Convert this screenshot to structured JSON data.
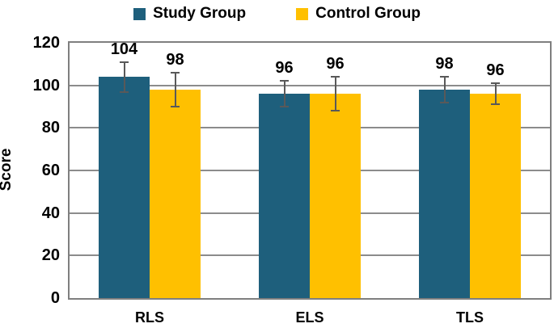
{
  "chart_data": {
    "type": "bar",
    "categories": [
      "RLS",
      "ELS",
      "TLS"
    ],
    "series": [
      {
        "name": "Study Group",
        "color": "#1E5F7C",
        "values": [
          104,
          96,
          98
        ],
        "errors": [
          7,
          6,
          6
        ]
      },
      {
        "name": "Control Group",
        "color": "#FFC000",
        "values": [
          98,
          96,
          96
        ],
        "errors": [
          8,
          8,
          5
        ]
      }
    ],
    "title": "",
    "xlabel": "",
    "ylabel": "Score",
    "ylim": [
      0,
      120
    ],
    "yticks": [
      0,
      20,
      40,
      60,
      80,
      100,
      120
    ],
    "grid": "horizontal",
    "legend_position": "top-center",
    "data_labels": true,
    "error_bars": true
  },
  "colors": {
    "grid": "#8C8C8C",
    "plot_border": "#7F7F7F",
    "error_bar": "#595959",
    "text": "#000000",
    "background": "#FFFFFF"
  }
}
